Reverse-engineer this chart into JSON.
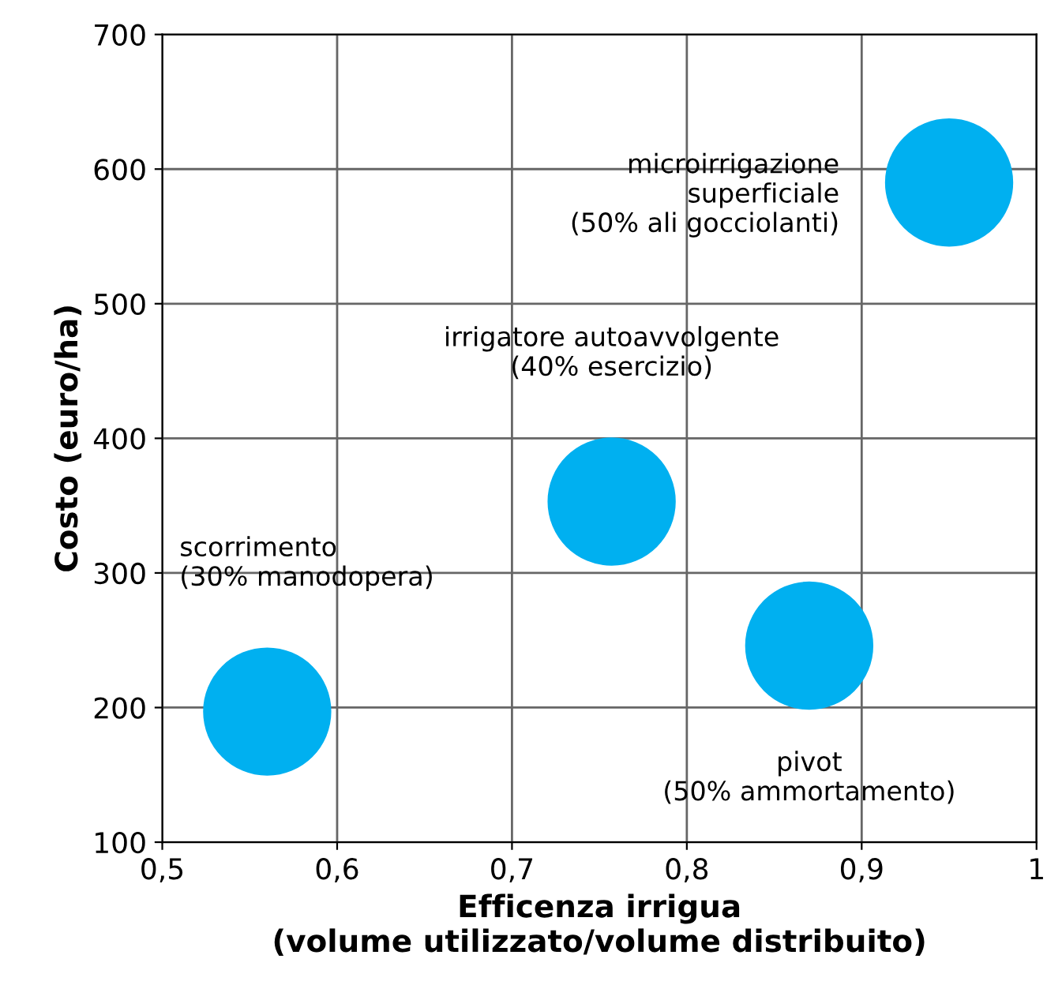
{
  "chart_data": {
    "type": "scatter",
    "xlabel": "Efficenza irrigua\n(volume utilizzato/volume distribuito)",
    "ylabel": "Costo (euro/ha)",
    "x": [
      0.56,
      0.757,
      0.87,
      0.95
    ],
    "series": [
      {
        "color": "#00b0f0",
        "values": [
          197,
          353,
          246,
          590
        ]
      }
    ],
    "marker": "circle",
    "xlim": [
      0.5,
      1
    ],
    "xticks": [
      {
        "value": 0.5,
        "label": "0,5"
      },
      {
        "value": 0.6,
        "label": "0,6"
      },
      {
        "value": 0.7,
        "label": "0,7"
      },
      {
        "value": 0.8,
        "label": "0,8"
      },
      {
        "value": 0.9,
        "label": "0,9"
      },
      {
        "value": 1,
        "label": "1"
      }
    ],
    "ylim": [
      100,
      700
    ],
    "yticks": [
      100,
      200,
      300,
      400,
      500,
      600,
      700
    ],
    "grid": true,
    "annotations": [
      "scorrimento\n(30% manodopera)",
      "irrigatore autoavvolgente\n(40% esercizio)",
      "pivot\n(50% ammortamento)",
      "microirrigazione\nsuperficiale\n(50% ali gocciolanti)"
    ]
  }
}
